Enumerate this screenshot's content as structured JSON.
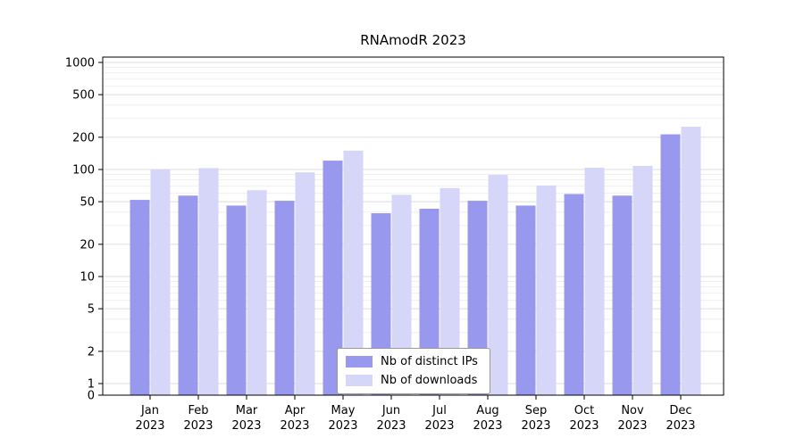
{
  "chart_data": {
    "type": "bar",
    "title": "RNAmodR 2023",
    "year_label": "2023",
    "yscale": "log",
    "grid": true,
    "legend_position": "bottom-center-inside",
    "categories": [
      "Jan",
      "Feb",
      "Mar",
      "Apr",
      "May",
      "Jun",
      "Jul",
      "Aug",
      "Sep",
      "Oct",
      "Nov",
      "Dec"
    ],
    "yticks": [
      0,
      1,
      2,
      5,
      10,
      20,
      50,
      100,
      200,
      500,
      1000
    ],
    "ylim": [
      0,
      1000
    ],
    "series": [
      {
        "name": "Nb of distinct IPs",
        "color": "#9898ee",
        "values": [
          52,
          57,
          46,
          51,
          121,
          39,
          43,
          51,
          46,
          59,
          57,
          213
        ]
      },
      {
        "name": "Nb of downloads",
        "color": "#d6d6f8",
        "values": [
          100,
          103,
          64,
          94,
          150,
          58,
          67,
          89,
          71,
          104,
          108,
          251
        ]
      }
    ]
  }
}
